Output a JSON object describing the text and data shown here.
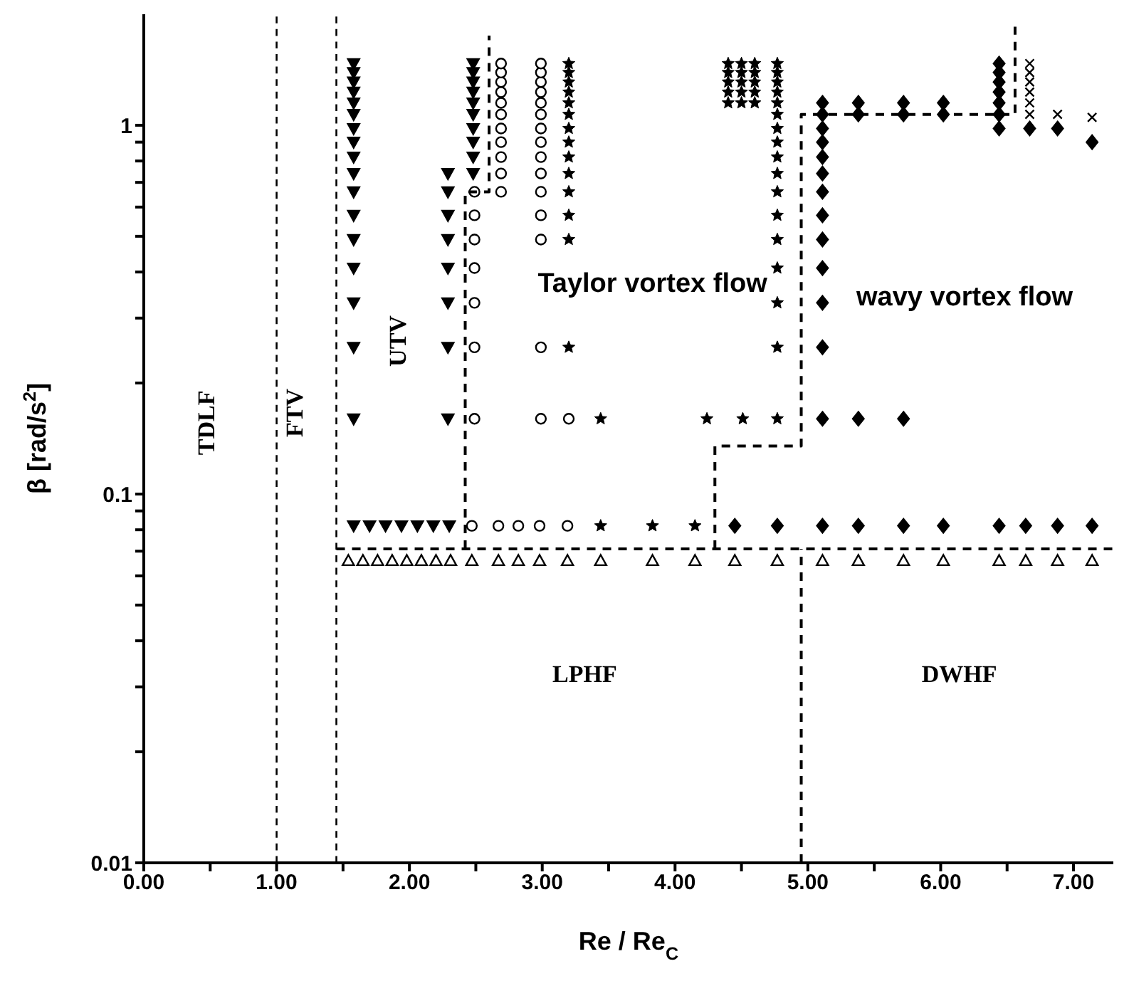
{
  "chart_data": {
    "type": "scatter",
    "xlabel": "Re / Re$_{C}$",
    "ylabel": "β [rad/s$^{2}$]",
    "xlim": [
      0,
      7.3
    ],
    "ylim": [
      0.01,
      2
    ],
    "log": "y",
    "grid": false,
    "xticks": [
      {
        "value": 0,
        "label": "0.00"
      },
      {
        "value": 0.5,
        "label": null
      },
      {
        "value": 1,
        "label": "1.00"
      },
      {
        "value": 1.5,
        "label": null
      },
      {
        "value": 2,
        "label": "2.00"
      },
      {
        "value": 2.5,
        "label": null
      },
      {
        "value": 3,
        "label": "3.00"
      },
      {
        "value": 3.5,
        "label": null
      },
      {
        "value": 4,
        "label": "4.00"
      },
      {
        "value": 4.5,
        "label": null
      },
      {
        "value": 5,
        "label": "5.00"
      },
      {
        "value": 5.5,
        "label": null
      },
      {
        "value": 6,
        "label": "6.00"
      },
      {
        "value": 6.5,
        "label": null
      },
      {
        "value": 7,
        "label": "7.00"
      }
    ],
    "yticks": [
      0.01,
      {
        "value": 0.02,
        "label": null
      },
      {
        "value": 0.03,
        "label": null
      },
      {
        "value": 0.04,
        "label": null
      },
      {
        "value": 0.05,
        "label": null
      },
      {
        "value": 0.06,
        "label": null
      },
      {
        "value": 0.07,
        "label": null
      },
      {
        "value": 0.08,
        "label": null
      },
      {
        "value": 0.09,
        "label": null
      },
      0.1,
      {
        "value": 0.2,
        "label": null
      },
      {
        "value": 0.3,
        "label": null
      },
      {
        "value": 0.4,
        "label": null
      },
      {
        "value": 0.5,
        "label": null
      },
      {
        "value": 0.6,
        "label": null
      },
      {
        "value": 0.7,
        "label": null
      },
      {
        "value": 0.8,
        "label": null
      },
      {
        "value": 0.9,
        "label": null
      },
      1
    ],
    "series": [
      {
        "marker": "triangle",
        "color": "#000000",
        "x": [
          1.58,
          1.58,
          1.58,
          1.58,
          1.58,
          1.58,
          1.58,
          1.58,
          1.58,
          1.58,
          1.58,
          1.58,
          1.58,
          1.58,
          1.58,
          1.58,
          1.58,
          2.29,
          2.29,
          2.29,
          2.29,
          2.29,
          2.29,
          2.29,
          2.29,
          2.48,
          2.48,
          2.48,
          2.48,
          2.48,
          2.48,
          2.48,
          2.48,
          2.48,
          2.48,
          1.58,
          1.7,
          1.82,
          1.94,
          2.06,
          2.18,
          2.3
        ],
        "values": [
          0.16,
          0.25,
          0.33,
          0.41,
          0.49,
          0.57,
          0.66,
          0.74,
          0.82,
          0.9,
          0.98,
          1.07,
          1.15,
          1.23,
          1.31,
          1.39,
          1.47,
          0.16,
          0.25,
          0.33,
          0.41,
          0.49,
          0.57,
          0.66,
          0.74,
          0.74,
          0.82,
          0.9,
          0.98,
          1.07,
          1.15,
          1.23,
          1.31,
          1.39,
          1.47,
          0.082,
          0.082,
          0.082,
          0.082,
          0.082,
          0.082,
          0.082
        ]
      },
      {
        "marker": "circle",
        "color": "#000000",
        "x": [
          2.49,
          2.49,
          2.49,
          2.49,
          2.49,
          2.49,
          2.49,
          2.69,
          2.69,
          2.69,
          2.69,
          2.69,
          2.69,
          2.69,
          2.69,
          2.69,
          2.69,
          2.69,
          2.99,
          2.99,
          2.99,
          2.99,
          2.99,
          2.99,
          2.99,
          2.99,
          2.99,
          2.99,
          2.99,
          2.99,
          2.99,
          2.99,
          2.99,
          3.2,
          2.47,
          2.67,
          2.82,
          2.98,
          3.19
        ],
        "values": [
          0.16,
          0.25,
          0.33,
          0.41,
          0.49,
          0.57,
          0.66,
          0.66,
          0.74,
          0.82,
          0.9,
          0.98,
          1.07,
          1.15,
          1.23,
          1.31,
          1.39,
          1.47,
          0.16,
          0.25,
          0.49,
          0.57,
          0.66,
          0.74,
          0.82,
          0.9,
          0.98,
          1.07,
          1.15,
          1.23,
          1.31,
          1.39,
          1.47,
          0.16,
          0.082,
          0.082,
          0.082,
          0.082,
          0.082
        ]
      },
      {
        "marker": "star",
        "color": "#000000",
        "x": [
          3.2,
          3.2,
          3.2,
          3.2,
          3.2,
          3.2,
          3.2,
          3.2,
          3.2,
          3.2,
          3.2,
          3.2,
          3.2,
          3.2,
          3.44,
          3.44,
          3.83,
          4.15,
          4.24,
          4.51,
          4.4,
          4.4,
          4.4,
          4.4,
          4.4,
          4.5,
          4.5,
          4.5,
          4.5,
          4.5,
          4.6,
          4.6,
          4.6,
          4.6,
          4.6,
          4.77,
          4.77,
          4.77,
          4.77,
          4.77,
          4.77,
          4.77,
          4.77,
          4.77,
          4.77,
          4.77,
          4.77,
          4.77,
          4.77,
          4.77,
          4.77,
          4.77
        ],
        "values": [
          0.25,
          0.49,
          0.57,
          0.66,
          0.74,
          0.82,
          0.9,
          0.98,
          1.07,
          1.15,
          1.23,
          1.31,
          1.39,
          1.47,
          0.082,
          0.16,
          0.082,
          0.082,
          0.16,
          0.16,
          1.15,
          1.23,
          1.31,
          1.39,
          1.47,
          1.15,
          1.23,
          1.31,
          1.39,
          1.47,
          1.15,
          1.23,
          1.31,
          1.39,
          1.47,
          0.16,
          0.25,
          0.33,
          0.41,
          0.49,
          0.57,
          0.66,
          0.74,
          0.82,
          0.9,
          0.98,
          1.07,
          1.15,
          1.23,
          1.31,
          1.39,
          1.47
        ]
      },
      {
        "marker": "diamond",
        "color": "#000000",
        "x": [
          4.45,
          4.77,
          5.11,
          5.38,
          5.72,
          6.02,
          6.44,
          6.64,
          6.88,
          7.14,
          5.11,
          5.11,
          5.11,
          5.11,
          5.11,
          5.11,
          5.11,
          5.11,
          5.11,
          5.11,
          5.11,
          5.11,
          5.11,
          5.38,
          5.38,
          5.38,
          5.72,
          5.72,
          5.72,
          6.02,
          6.02,
          6.44,
          6.44,
          6.44,
          6.44,
          6.44,
          6.44,
          6.44,
          6.67,
          6.88,
          7.14
        ],
        "values": [
          0.082,
          0.082,
          0.082,
          0.082,
          0.082,
          0.082,
          0.082,
          0.082,
          0.082,
          0.082,
          0.16,
          0.25,
          0.33,
          0.41,
          0.49,
          0.57,
          0.66,
          0.74,
          0.82,
          0.9,
          0.98,
          1.07,
          1.15,
          0.16,
          1.07,
          1.15,
          0.16,
          1.07,
          1.15,
          1.07,
          1.15,
          0.98,
          1.07,
          1.15,
          1.23,
          1.31,
          1.39,
          1.47,
          0.98,
          0.98,
          0.9
        ]
      },
      {
        "marker": "triangle",
        "color": "#000000",
        "x": [
          1.54,
          1.65,
          1.76,
          1.87,
          1.98,
          2.09,
          2.2,
          2.31,
          2.47,
          2.67,
          2.82,
          2.98,
          3.19,
          3.44,
          3.83,
          4.15,
          4.45,
          4.77,
          5.11,
          5.38,
          5.72,
          6.02,
          6.44,
          6.64,
          6.88,
          7.14
        ],
        "values": [
          0.066,
          0.066,
          0.066,
          0.066,
          0.066,
          0.066,
          0.066,
          0.066,
          0.066,
          0.066,
          0.066,
          0.066,
          0.066,
          0.066,
          0.066,
          0.066,
          0.066,
          0.066,
          0.066,
          0.066,
          0.066,
          0.066,
          0.066,
          0.066,
          0.066,
          0.066
        ]
      },
      {
        "marker": "cross",
        "color": "#000000",
        "x": [
          6.67,
          6.67,
          6.67,
          6.67,
          6.67,
          6.67,
          6.88,
          7.14
        ],
        "values": [
          1.07,
          1.15,
          1.23,
          1.31,
          1.39,
          1.47,
          1.07,
          1.05
        ]
      },
      {
        "type": "line",
        "line_style": "dashed",
        "marker": "none",
        "color": "#000000",
        "x": [
          1.45,
          7.3
        ],
        "values": [
          0.071,
          0.071
        ]
      },
      {
        "type": "line",
        "line_style": "dashed",
        "marker": "none",
        "color": "#000000",
        "x": [
          2.42,
          2.42,
          2.6,
          2.6
        ],
        "values": [
          0.071,
          0.66,
          0.66,
          1.75
        ]
      },
      {
        "type": "line",
        "line_style": "dashed",
        "marker": "none",
        "color": "#000000",
        "x": [
          4.3,
          4.3,
          4.95,
          4.95,
          6.56,
          6.56
        ],
        "values": [
          0.071,
          0.135,
          0.135,
          1.07,
          1.07,
          1.85
        ]
      },
      {
        "type": "line",
        "line_style": "dashed",
        "marker": "none",
        "color": "#000000",
        "x": [
          4.95,
          4.95
        ],
        "values": [
          0.01,
          0.071
        ]
      }
    ],
    "ref_lines": [
      {
        "axis": "x",
        "value": 1,
        "line_style": "dashed",
        "color": "#000000"
      },
      {
        "axis": "x",
        "value": 1.45,
        "line_style": "dashed",
        "color": "#000000"
      }
    ],
    "annotations": [
      "TDLF",
      "FTV",
      "UTV",
      "Taylor vortex flow",
      "wavy vortex flow",
      "LPHF",
      "DWHF"
    ]
  }
}
